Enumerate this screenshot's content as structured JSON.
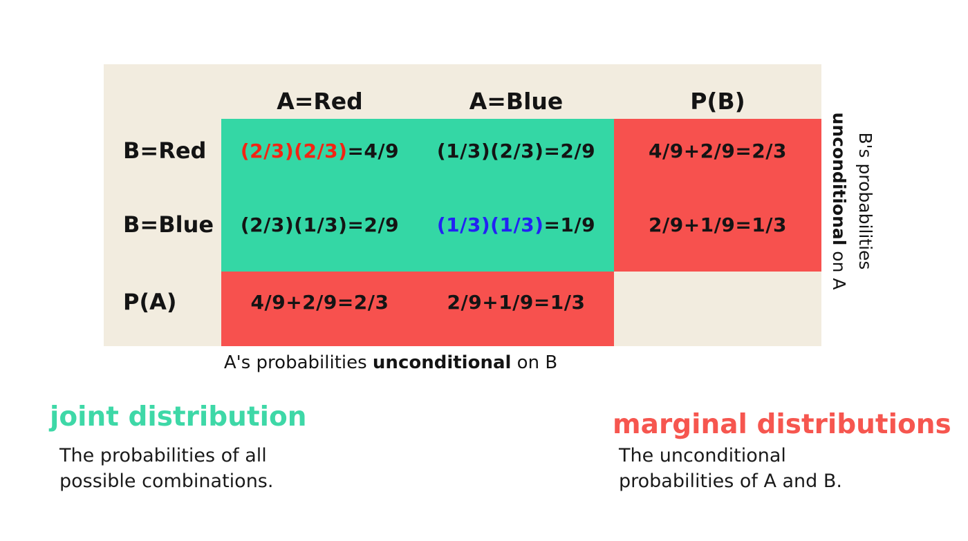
{
  "colors": {
    "panel_bg": "#f2ecdf",
    "joint_bg": "#34d7a5",
    "marginal_bg": "#f7514e",
    "highlight_red": "#f32413",
    "highlight_blue": "#2222f3",
    "joint_label": "#3ed8a7",
    "marginal_label": "#f6564f"
  },
  "table": {
    "column_headers": [
      {
        "label": "A=Red"
      },
      {
        "label": "A=Blue"
      },
      {
        "label": "P(B)"
      }
    ],
    "rows": [
      {
        "label": "B=Red",
        "cells": [
          {
            "parts": [
              {
                "text": "(2/3)(2/3)",
                "color": "red"
              },
              {
                "text": "=4/9",
                "color": "black"
              }
            ]
          },
          {
            "parts": [
              {
                "text": "(1/3)(2/3)=2/9",
                "color": "black"
              }
            ]
          },
          {
            "parts": [
              {
                "text": "4/9+2/9=2/3",
                "color": "black"
              }
            ]
          }
        ]
      },
      {
        "label": "B=Blue",
        "cells": [
          {
            "parts": [
              {
                "text": "(2/3)(1/3)=2/9",
                "color": "black"
              }
            ]
          },
          {
            "parts": [
              {
                "text": "(1/3)(1/3)",
                "color": "blue"
              },
              {
                "text": "=1/9",
                "color": "black"
              }
            ]
          },
          {
            "parts": [
              {
                "text": "2/9+1/9=1/3",
                "color": "black"
              }
            ]
          }
        ]
      },
      {
        "label": "P(A)",
        "cells": [
          {
            "parts": [
              {
                "text": "4/9+2/9=2/3",
                "color": "black"
              }
            ]
          },
          {
            "parts": [
              {
                "text": "2/9+1/9=1/3",
                "color": "black"
              }
            ]
          },
          {
            "parts": []
          }
        ]
      }
    ]
  },
  "captions": {
    "bottom": {
      "pre": "A's probabilities ",
      "bold": "unconditional",
      "post": " on B"
    },
    "side": {
      "line1": "B's probabilities",
      "line2_bold": "unconditional",
      "line2_rest": " on A"
    }
  },
  "legend": {
    "joint": {
      "title": "joint distribution",
      "desc_line1": "The probabilities of all",
      "desc_line2": "possible combinations."
    },
    "marginal": {
      "title": "marginal distributions",
      "desc_line1": "The unconditional",
      "desc_line2": "probabilities of A and B."
    }
  }
}
